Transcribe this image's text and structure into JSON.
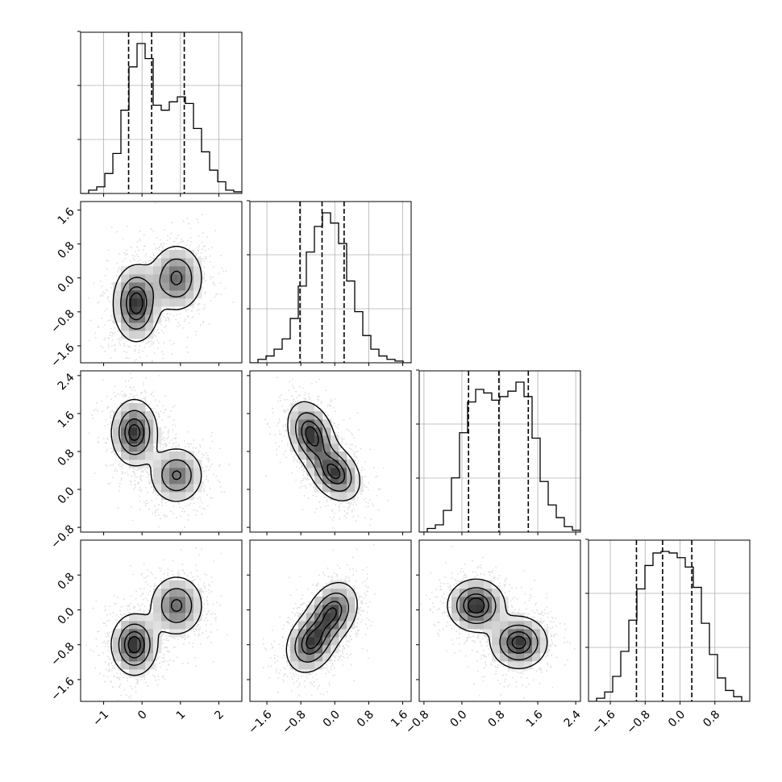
{
  "chart_data": {
    "type": "corner",
    "n_params": 4,
    "title": "",
    "axis_labels": [
      "",
      "",
      "",
      ""
    ],
    "grid": true,
    "ranges": [
      [
        -1.6,
        2.6
      ],
      [
        -2.0,
        1.8
      ],
      [
        -0.9,
        2.5
      ],
      [
        -2.1,
        1.6
      ]
    ],
    "ticks": [
      [
        -1,
        0,
        1,
        2
      ],
      [
        -1.6,
        -0.8,
        0.0,
        0.8,
        1.6
      ],
      [
        -0.8,
        0.0,
        0.8,
        1.6,
        2.4
      ],
      [
        -1.6,
        -0.8,
        0.0,
        0.8
      ]
    ],
    "tick_labels": [
      [
        "−1",
        "0",
        "1",
        "2"
      ],
      [
        "−1.6",
        "−0.8",
        "0.0",
        "0.8",
        "1.6"
      ],
      [
        "−0.8",
        "0.0",
        "0.8",
        "1.6",
        "2.4"
      ],
      [
        "−1.6",
        "−0.8",
        "0.0",
        "0.8"
      ]
    ],
    "quantiles": [
      [
        -0.35,
        0.25,
        1.1
      ],
      [
        -0.82,
        -0.3,
        0.22
      ],
      [
        0.14,
        0.78,
        1.4
      ],
      [
        -1.0,
        -0.4,
        0.27
      ]
    ],
    "histograms": [
      {
        "edges_start": -1.6,
        "bin_width": 0.21,
        "counts": [
          0,
          2,
          4,
          12,
          24,
          50,
          76,
          90,
          81,
          53,
          50,
          55,
          58,
          54,
          39,
          25,
          14,
          7,
          2,
          1
        ]
      },
      {
        "edges_start": -2.0,
        "bin_width": 0.19,
        "counts": [
          0,
          2,
          4,
          8,
          14,
          26,
          45,
          65,
          80,
          88,
          82,
          70,
          48,
          30,
          16,
          8,
          4,
          2,
          1,
          0
        ]
      },
      {
        "edges_start": -0.9,
        "bin_width": 0.17,
        "counts": [
          0,
          2,
          4,
          12,
          30,
          55,
          72,
          79,
          77,
          73,
          75,
          78,
          83,
          75,
          52,
          28,
          15,
          8,
          3,
          1
        ]
      },
      {
        "edges_start": -2.1,
        "bin_width": 0.185,
        "counts": [
          0,
          2,
          6,
          16,
          32,
          52,
          72,
          87,
          95,
          96,
          95,
          92,
          86,
          73,
          50,
          30,
          15,
          7,
          3,
          0
        ]
      }
    ],
    "pairs": [
      {
        "row": 1,
        "col": 0,
        "components": [
          {
            "mx": -0.15,
            "my": -0.6,
            "sx": 0.3,
            "sy": 0.45,
            "rho": 0.0,
            "w": 1.0
          },
          {
            "mx": 0.9,
            "my": 0.0,
            "sx": 0.35,
            "sy": 0.4,
            "rho": 0.0,
            "w": 0.75
          }
        ]
      },
      {
        "row": 2,
        "col": 0,
        "components": [
          {
            "mx": -0.2,
            "my": 1.2,
            "sx": 0.3,
            "sy": 0.35,
            "rho": 0.0,
            "w": 1.0
          },
          {
            "mx": 0.9,
            "my": 0.3,
            "sx": 0.35,
            "sy": 0.3,
            "rho": 0.0,
            "w": 0.75
          }
        ]
      },
      {
        "row": 3,
        "col": 0,
        "components": [
          {
            "mx": -0.2,
            "my": -0.8,
            "sx": 0.3,
            "sy": 0.35,
            "rho": 0.0,
            "w": 1.0
          },
          {
            "mx": 0.9,
            "my": 0.1,
            "sx": 0.35,
            "sy": 0.35,
            "rho": 0.0,
            "w": 0.75
          }
        ]
      },
      {
        "row": 2,
        "col": 1,
        "components": [
          {
            "mx": -0.55,
            "my": 1.15,
            "sx": 0.28,
            "sy": 0.35,
            "rho": -0.3,
            "w": 1.0
          },
          {
            "mx": 0.0,
            "my": 0.35,
            "sx": 0.3,
            "sy": 0.3,
            "rho": -0.3,
            "w": 0.95
          }
        ]
      },
      {
        "row": 3,
        "col": 1,
        "components": [
          {
            "mx": -0.55,
            "my": -0.75,
            "sx": 0.3,
            "sy": 0.35,
            "rho": 0.25,
            "w": 1.0
          },
          {
            "mx": -0.05,
            "my": -0.05,
            "sx": 0.3,
            "sy": 0.35,
            "rho": 0.25,
            "w": 0.95
          }
        ]
      },
      {
        "row": 3,
        "col": 2,
        "components": [
          {
            "mx": 0.3,
            "my": 0.1,
            "sx": 0.3,
            "sy": 0.3,
            "rho": 0.0,
            "w": 1.0
          },
          {
            "mx": 1.2,
            "my": -0.75,
            "sx": 0.3,
            "sy": 0.3,
            "rho": 0.0,
            "w": 0.95
          }
        ]
      }
    ]
  }
}
